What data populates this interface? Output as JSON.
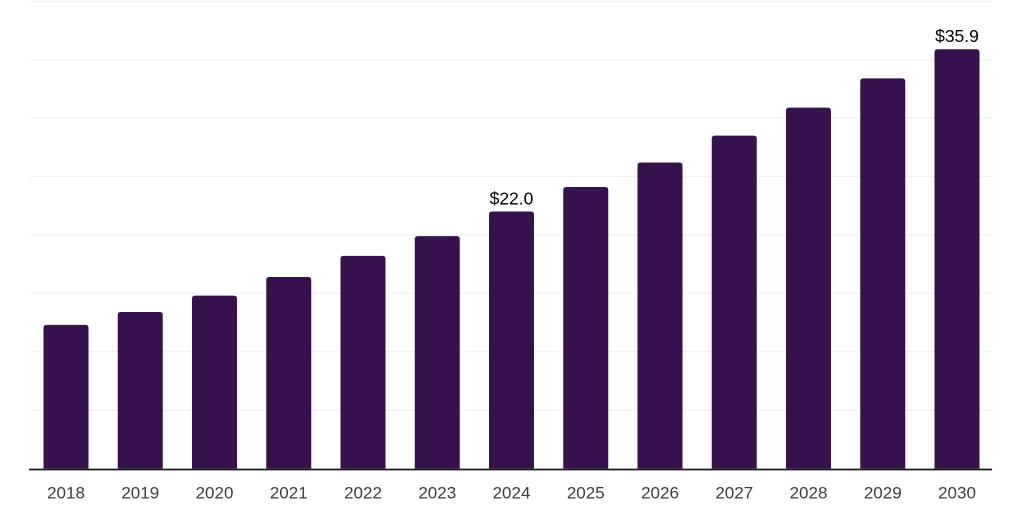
{
  "chart_data": {
    "type": "bar",
    "title": "",
    "xlabel": "",
    "ylabel": "",
    "categories": [
      "2018",
      "2019",
      "2020",
      "2021",
      "2022",
      "2023",
      "2024",
      "2025",
      "2026",
      "2027",
      "2028",
      "2029",
      "2030"
    ],
    "values": [
      12.3,
      13.4,
      14.8,
      16.4,
      18.2,
      19.9,
      22.0,
      24.1,
      26.2,
      28.5,
      30.9,
      33.4,
      35.9
    ],
    "point_labels": [
      "",
      "",
      "",
      "",
      "",
      "",
      "$22.0",
      "",
      "",
      "",
      "",
      "",
      "$35.9"
    ],
    "ylim": [
      0,
      40
    ],
    "grid_step": 5,
    "grid": true,
    "legend": false,
    "colors": {
      "bar": "#36114E",
      "gridline": "#f2f2f2",
      "axis": "#1a1a1a",
      "tick_label": "#3d3d3d",
      "data_label": "#000000",
      "background": "#ffffff"
    }
  }
}
